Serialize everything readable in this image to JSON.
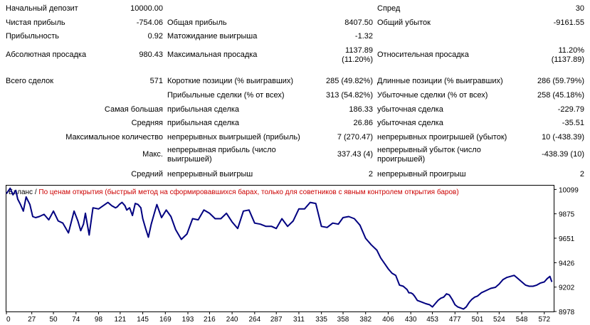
{
  "stats": {
    "initial_deposit_label": "Начальный депозит",
    "initial_deposit_value": "10000.00",
    "spread_label": "Спред",
    "spread_value": "30",
    "net_profit_label": "Чистая прибыль",
    "net_profit_value": "-754.06",
    "gross_profit_label": "Общая прибыль",
    "gross_profit_value": "8407.50",
    "gross_loss_label": "Общий убыток",
    "gross_loss_value": "-9161.55",
    "profit_factor_label": "Прибыльность",
    "profit_factor_value": "0.92",
    "expected_payoff_label": "Матожидание выигрыша",
    "expected_payoff_value": "-1.32",
    "abs_drawdown_label": "Абсолютная просадка",
    "abs_drawdown_value": "980.43",
    "max_drawdown_label": "Максимальная просадка",
    "max_drawdown_value_1": "1137.89",
    "max_drawdown_value_2": "(11.20%)",
    "rel_drawdown_label": "Относительная просадка",
    "rel_drawdown_value_1": "11.20%",
    "rel_drawdown_value_2": "(1137.89)",
    "total_trades_label": "Всего сделок",
    "total_trades_value": "571",
    "short_label": "Короткие позиции (% выигравших)",
    "short_value": "285 (49.82%)",
    "long_label": "Длинные позиции (% выигравших)",
    "long_value": "286 (59.79%)",
    "profit_trades_label": "Прибыльные сделки (% от всех)",
    "profit_trades_value": "313 (54.82%)",
    "loss_trades_label": "Убыточные сделки (% от всех)",
    "loss_trades_value": "258 (45.18%)",
    "largest_label": "Самая большая",
    "largest_profit_label": "прибыльная сделка",
    "largest_profit_value": "186.33",
    "largest_loss_label": "убыточная сделка",
    "largest_loss_value": "-229.79",
    "average_label": "Средняя",
    "average_profit_label": "прибыльная сделка",
    "average_profit_value": "26.86",
    "average_loss_label": "убыточная сделка",
    "average_loss_value": "-35.51",
    "max_count_label": "Максимальное количество",
    "max_cons_wins_label": "непрерывных выигрышей (прибыль)",
    "max_cons_wins_value": "7 (270.47)",
    "max_cons_losses_label": "непрерывных проигрышей (убыток)",
    "max_cons_losses_value": "10 (-438.39)",
    "max_label": "Макс.",
    "max_cons_profit_label": "непрерывная прибыль (число выигрышей)",
    "max_cons_profit_value": "337.43 (4)",
    "max_cons_loss_label": "непрерывный убыток (число проигрышей)",
    "max_cons_loss_value": "-438.39 (10)",
    "avg_label": "Средний",
    "avg_cons_wins_label": "непрерывный выигрыш",
    "avg_cons_wins_value": "2",
    "avg_cons_losses_label": "непрерывный проигрыш",
    "avg_cons_losses_value": "2"
  },
  "chart_data": {
    "type": "line",
    "title_prefix": "Баланс",
    "separator": "/",
    "title": "По ценам открытия (быстрый метод на сформировавшихся барах, только для советников с явным контролем открытия баров)",
    "line_color": "#000080",
    "title_color": "#cc0000",
    "xlim": [
      0,
      582
    ],
    "ylim": [
      8978,
      10134
    ],
    "x_ticks": [
      0,
      27,
      50,
      74,
      98,
      121,
      145,
      169,
      193,
      216,
      240,
      264,
      287,
      311,
      335,
      358,
      382,
      406,
      430,
      453,
      477,
      501,
      524,
      548,
      572
    ],
    "y_ticks": [
      10099,
      9875,
      9651,
      9426,
      9202,
      8978
    ],
    "series": [
      {
        "x": [
          0,
          4,
          7,
          10,
          12,
          15,
          18,
          21,
          25,
          28,
          31,
          35,
          40,
          45,
          50,
          55,
          60,
          66,
          72,
          76,
          79,
          82,
          84,
          88,
          92,
          98,
          103,
          108,
          112,
          116,
          118,
          120,
          123,
          126,
          128,
          131,
          134,
          137,
          140,
          143,
          145,
          148,
          151,
          154,
          157,
          160,
          165,
          170,
          175,
          180,
          186,
          192,
          198,
          204,
          210,
          216,
          222,
          228,
          234,
          240,
          246,
          252,
          258,
          264,
          270,
          276,
          282,
          287,
          293,
          299,
          305,
          311,
          317,
          323,
          329,
          335,
          341,
          347,
          353,
          358,
          364,
          370,
          376,
          382,
          388,
          394,
          398,
          402,
          406,
          410,
          414,
          418,
          422,
          426,
          428,
          430,
          432,
          434,
          437,
          440,
          443,
          446,
          450,
          453,
          456,
          459,
          462,
          465,
          468,
          471,
          474,
          477,
          480,
          483,
          486,
          489,
          492,
          495,
          498,
          501,
          505,
          510,
          515,
          520,
          524,
          528,
          532,
          536,
          540,
          544,
          548,
          552,
          556,
          560,
          564,
          568,
          572,
          575,
          578,
          580
        ],
        "y": [
          10060,
          10110,
          10050,
          10090,
          10010,
          9960,
          9900,
          10030,
          9960,
          9850,
          9840,
          9850,
          9870,
          9820,
          9900,
          9810,
          9790,
          9700,
          9900,
          9810,
          9720,
          9780,
          9880,
          9680,
          9930,
          9920,
          9950,
          9980,
          9950,
          9930,
          9940,
          9960,
          9980,
          9950,
          9910,
          9930,
          9860,
          9970,
          9960,
          9930,
          9830,
          9740,
          9660,
          9780,
          9870,
          9960,
          9840,
          9910,
          9850,
          9730,
          9640,
          9690,
          9830,
          9820,
          9910,
          9880,
          9830,
          9830,
          9880,
          9800,
          9740,
          9900,
          9910,
          9790,
          9780,
          9760,
          9760,
          9740,
          9830,
          9760,
          9810,
          9920,
          9920,
          9980,
          9970,
          9760,
          9750,
          9790,
          9780,
          9840,
          9850,
          9830,
          9770,
          9650,
          9590,
          9540,
          9470,
          9420,
          9370,
          9330,
          9310,
          9220,
          9210,
          9180,
          9150,
          9150,
          9140,
          9120,
          9080,
          9070,
          9060,
          9050,
          9040,
          9020,
          9050,
          9080,
          9100,
          9110,
          9140,
          9130,
          9090,
          9040,
          9020,
          9010,
          9000,
          9020,
          9060,
          9090,
          9110,
          9120,
          9150,
          9170,
          9190,
          9200,
          9230,
          9270,
          9290,
          9300,
          9310,
          9280,
          9250,
          9220,
          9210,
          9210,
          9220,
          9240,
          9250,
          9280,
          9300,
          9250
        ]
      }
    ]
  }
}
